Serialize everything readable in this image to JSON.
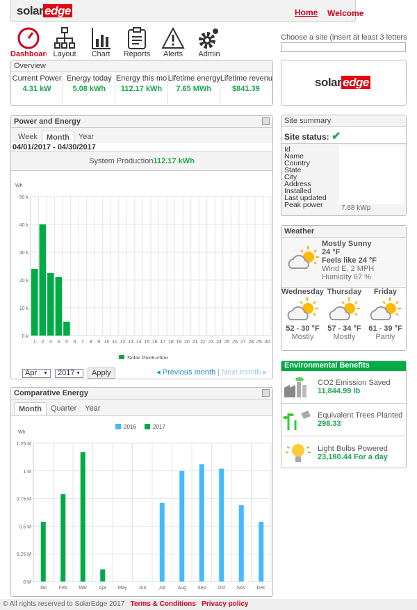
{
  "header": {
    "logo": "solaredge",
    "home": "Home",
    "welcome": "Welcome"
  },
  "menu": [
    {
      "label": "Dashboard",
      "icon": "gauge-icon"
    },
    {
      "label": "Layout",
      "icon": "sitemap-icon"
    },
    {
      "label": "Chart",
      "icon": "bar-chart-icon"
    },
    {
      "label": "Reports",
      "icon": "clipboard-icon"
    },
    {
      "label": "Alerts",
      "icon": "warning-icon"
    },
    {
      "label": "Admin",
      "icon": "gear-icon"
    }
  ],
  "site_chooser": {
    "label": "Choose a site (insert at least 3 letters",
    "value": ""
  },
  "overview": {
    "title": "Overview",
    "items": [
      {
        "label": "Current Power",
        "value": "4.31 kW"
      },
      {
        "label": "Energy today",
        "value": "5.08 kWh"
      },
      {
        "label": "Energy this mo",
        "value": "112.17 kWh"
      },
      {
        "label": "Lifetime energy",
        "value": "7.65 MWh"
      },
      {
        "label": "Lifetime revenu",
        "value": "$841.39"
      }
    ]
  },
  "power_energy": {
    "title": "Power and Energy",
    "tabs": [
      "Week",
      "Month",
      "Year"
    ],
    "active_tab": "Month",
    "range": "04/01/2017 - 04/30/2017",
    "production_label": "System Production",
    "production_value": "112.17 kWh",
    "month": "Apr",
    "year": "2017",
    "apply": "Apply",
    "prev": "Previous month",
    "next": "Next month",
    "sep": "|"
  },
  "comparative": {
    "title": "Comparative Energy",
    "tabs": [
      "Month",
      "Quarter",
      "Year"
    ],
    "active_tab": "Month"
  },
  "site_summary": {
    "title": "Site summary",
    "status_label": "Site status:",
    "fields": [
      "Id",
      "Name",
      "Country",
      "State",
      "City",
      "Address",
      "Installed",
      "Last updated",
      "Peak power"
    ],
    "peak_power": "7.68 kWp"
  },
  "weather": {
    "title": "Weather",
    "condition": "Mostly Sunny",
    "temp": "24 °F",
    "feels": "Feels like 24 °F",
    "wind": "Wind E, 2 MPH",
    "humidity": "Humidity 67 %",
    "forecast": [
      {
        "day": "Wednesday",
        "range": "52 - 30 °F",
        "desc": "Mostly"
      },
      {
        "day": "Thursday",
        "range": "57 - 34 °F",
        "desc": "Mostly"
      },
      {
        "day": "Friday",
        "range": "61 - 39 °F",
        "desc": "Partly"
      }
    ]
  },
  "env": {
    "title": "Environmental Benefits",
    "items": [
      {
        "label": "CO2 Emission Saved",
        "value": "11,844.99 lb",
        "icon": "factory-icon"
      },
      {
        "label": "Equivalent Trees Planted",
        "value": "298.33",
        "icon": "tree-icon"
      },
      {
        "label": "Light Bulbs Powered",
        "value": "23,180.44 For a day",
        "icon": "bulb-icon"
      }
    ]
  },
  "footer": {
    "copyright": "© All rights reserved to SolarEdge 2017",
    "terms": "Terms & Conditions",
    "privacy": "Privacy policy"
  },
  "colors": {
    "green": "#00aa44",
    "blue": "#44bbff",
    "red": "#e30613"
  },
  "chart_data": [
    {
      "type": "bar",
      "ylabel": "Wh",
      "ylim": [
        0,
        50000
      ],
      "yticks": [
        "0 k",
        "10 k",
        "20 k",
        "30 k",
        "40 k",
        "50 k"
      ],
      "categories": [
        "1",
        "2",
        "3",
        "4",
        "5",
        "6",
        "7",
        "8",
        "9",
        "10",
        "11",
        "12",
        "13",
        "14",
        "15",
        "16",
        "17",
        "18",
        "19",
        "20",
        "21",
        "22",
        "23",
        "24",
        "25",
        "26",
        "27",
        "28",
        "29",
        "30"
      ],
      "series": [
        {
          "name": "Solar Production",
          "color": "#00aa44",
          "values": [
            24000,
            40000,
            22500,
            21000,
            5000,
            0,
            0,
            0,
            0,
            0,
            0,
            0,
            0,
            0,
            0,
            0,
            0,
            0,
            0,
            0,
            0,
            0,
            0,
            0,
            0,
            0,
            0,
            0,
            0,
            0
          ]
        }
      ],
      "legend": "bottom",
      "grid": true
    },
    {
      "type": "bar",
      "ylabel": "Wh",
      "ylim": [
        0,
        1250000
      ],
      "yticks": [
        "0 M",
        "0.25 M",
        "0.5 M",
        "0.75 M",
        "1 M",
        "1.25 M"
      ],
      "categories": [
        "Jan",
        "Feb",
        "Mar",
        "Apr",
        "May",
        "Jun",
        "Jul",
        "Aug",
        "Sep",
        "Oct",
        "Nov",
        "Dec"
      ],
      "series": [
        {
          "name": "2016",
          "color": "#44bbff",
          "values": [
            0,
            0,
            0,
            0,
            0,
            0,
            710000,
            1000000,
            1060000,
            1020000,
            690000,
            540000
          ]
        },
        {
          "name": "2017",
          "color": "#00aa44",
          "values": [
            540000,
            790000,
            1170000,
            110000,
            0,
            0,
            0,
            0,
            0,
            0,
            0,
            0
          ]
        }
      ],
      "legend": "top",
      "grid": true
    }
  ]
}
